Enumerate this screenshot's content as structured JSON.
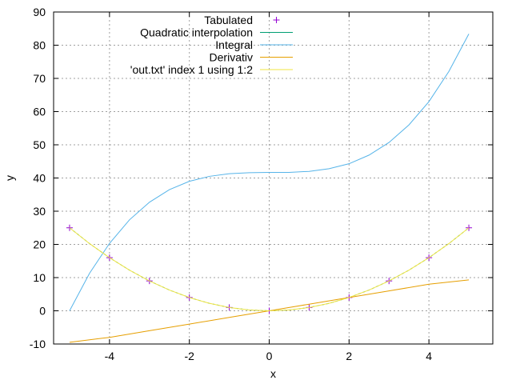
{
  "chart_data": {
    "type": "line",
    "xlabel": "x",
    "ylabel": "y",
    "xlim": [
      -5.4,
      5.6
    ],
    "ylim": [
      -10,
      90
    ],
    "xticks": [
      -4,
      -2,
      0,
      2,
      4
    ],
    "yticks": [
      -10,
      0,
      10,
      20,
      30,
      40,
      50,
      60,
      70,
      80,
      90
    ],
    "grid": true,
    "legend_position": "top-center",
    "series": [
      {
        "name": "Tabulated",
        "kind": "points",
        "color": "#9400d3",
        "x": [
          -5,
          -4,
          -3,
          -2,
          -1,
          0,
          1,
          2,
          3,
          4,
          5
        ],
        "y": [
          25,
          16,
          9,
          4,
          1,
          0,
          1,
          4,
          9,
          16,
          25
        ]
      },
      {
        "name": "Quadratic interpolation",
        "kind": "line",
        "color": "#009e73",
        "dashed": true,
        "x": [
          -5,
          -4.5,
          -4,
          -3.5,
          -3,
          -2.5,
          -2,
          -1.5,
          -1,
          -0.5,
          0,
          0.5,
          1,
          1.5,
          2,
          2.5,
          3,
          3.5,
          4,
          4.5,
          5
        ],
        "y": [
          25,
          20.25,
          16,
          12.25,
          9,
          6.25,
          4,
          2.25,
          1,
          0.25,
          0,
          0.25,
          1,
          2.25,
          4,
          6.25,
          9,
          12.25,
          16,
          20.25,
          25
        ]
      },
      {
        "name": "Integral",
        "kind": "line",
        "color": "#56b4e9",
        "x": [
          -5,
          -4.5,
          -4,
          -3.5,
          -3,
          -2.5,
          -2,
          -1.5,
          -1,
          -0.5,
          0,
          0.5,
          1,
          1.5,
          2,
          2.5,
          3,
          3.5,
          4,
          4.5,
          5
        ],
        "y": [
          0,
          11.3,
          20.3,
          27.4,
          32.7,
          36.5,
          39,
          40.5,
          41.3,
          41.6,
          41.7,
          41.7,
          42,
          42.8,
          44.3,
          46.9,
          50.7,
          56,
          63,
          72.1,
          83.4
        ]
      },
      {
        "name": "Derivativ",
        "kind": "line",
        "color": "#e69f00",
        "x": [
          -5,
          -4,
          -3,
          -2,
          -1,
          0,
          1,
          2,
          3,
          4,
          5
        ],
        "y": [
          -9.5,
          -8,
          -6,
          -4,
          -2,
          0,
          2,
          4,
          6,
          8,
          9.3
        ]
      },
      {
        "name": "'out.txt' index 1 using 1:2",
        "kind": "line",
        "color": "#f0e442",
        "x": [
          -5,
          -4.5,
          -4,
          -3.5,
          -3,
          -2.5,
          -2,
          -1.5,
          -1,
          -0.5,
          0,
          0.5,
          1,
          1.5,
          2,
          2.5,
          3,
          3.5,
          4,
          4.5,
          5
        ],
        "y": [
          25,
          20.25,
          16,
          12.25,
          9,
          6.25,
          4,
          2.25,
          1,
          0.25,
          0,
          0.25,
          1,
          2.25,
          4,
          6.25,
          9,
          12.25,
          16,
          20.25,
          25
        ]
      }
    ]
  }
}
